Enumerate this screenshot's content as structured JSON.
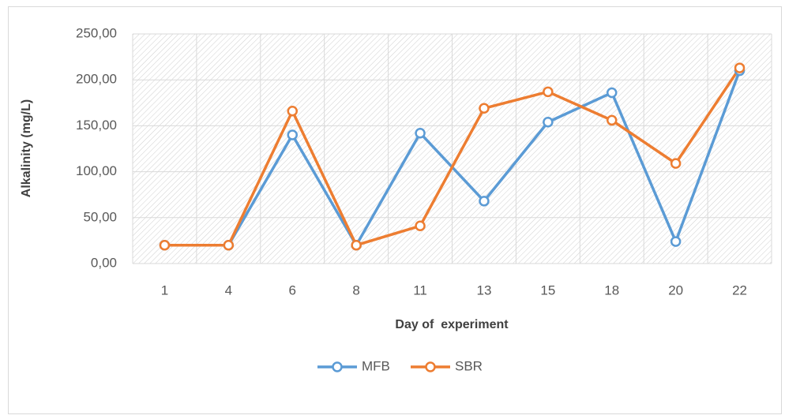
{
  "chart_data": {
    "type": "line",
    "x_label": "Day of  experiment",
    "y_label": "Alkalinity (mg/L)",
    "categories": [
      "1",
      "4",
      "6",
      "8",
      "11",
      "13",
      "15",
      "18",
      "20",
      "22"
    ],
    "series": [
      {
        "name": "MFB",
        "color": "#5b9bd5",
        "values": [
          20,
          20,
          140,
          20,
          142,
          68,
          154,
          186,
          24,
          210
        ]
      },
      {
        "name": "SBR",
        "color": "#ed7d31",
        "values": [
          20,
          20,
          166,
          20,
          41,
          169,
          187,
          156,
          109,
          213
        ]
      }
    ],
    "ylim": [
      0,
      250
    ],
    "yticks": [
      {
        "value": 0,
        "label": "0,00"
      },
      {
        "value": 50,
        "label": "50,00"
      },
      {
        "value": 100,
        "label": "100,00"
      },
      {
        "value": 150,
        "label": "150,00"
      },
      {
        "value": 200,
        "label": "200,00"
      },
      {
        "value": 250,
        "label": "250,00"
      }
    ],
    "grid": true,
    "legend": "bottom"
  }
}
